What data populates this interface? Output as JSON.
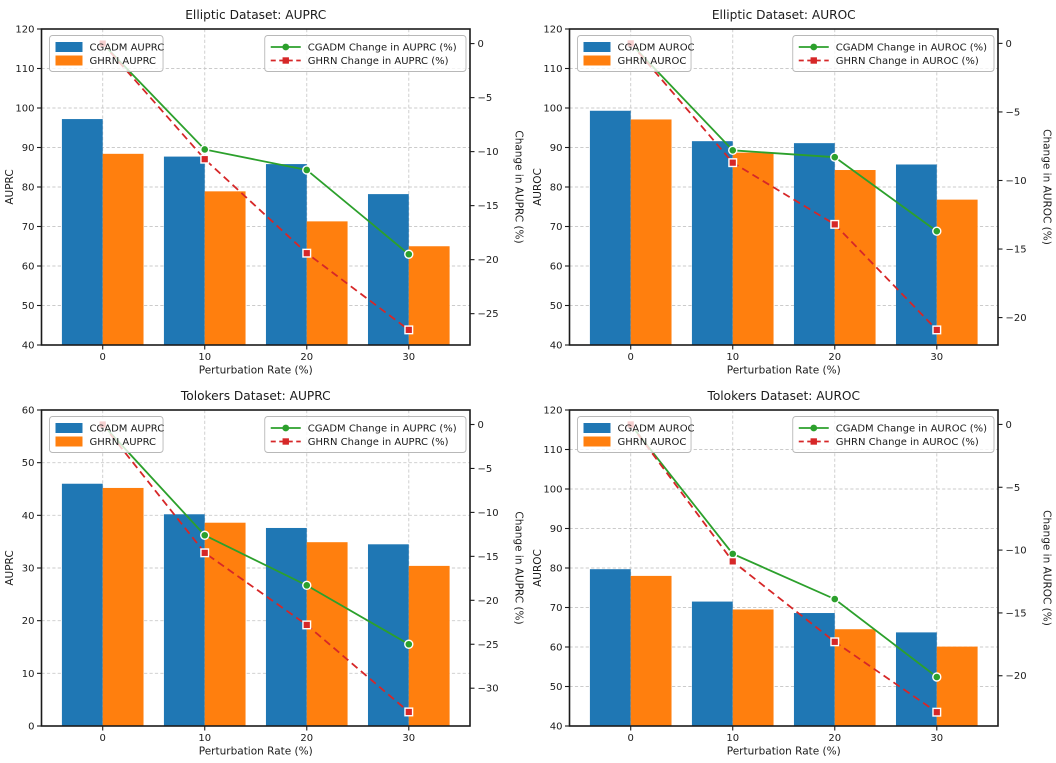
{
  "figure": {
    "background": "#ffffff",
    "description": "2x2 grid of bar+line charts comparing CGADM and GHRN under perturbation"
  },
  "colors": {
    "cgadm_bar": "#1f77b4",
    "ghrn_bar": "#ff7f0e",
    "cgadm_line": "#2ca02c",
    "ghrn_line": "#d62728",
    "grid": "#cbcbcb",
    "spine": "#1b1b1b",
    "legend_border": "#b8b8b8",
    "legend_bg": "#ffffff"
  },
  "chart_data": [
    {
      "id": "elliptic-auprc",
      "type": "bar+line",
      "title": "Elliptic Dataset: AUPRC",
      "xlabel": "Perturbation Rate (%)",
      "ylabel_left": "AUPRC",
      "ylabel_right": "Change in AUPRC (%)",
      "categories": [
        "0",
        "10",
        "20",
        "30"
      ],
      "series_bars": [
        {
          "name": "CGADM AUPRC",
          "color_key": "cgadm_bar",
          "values": [
            97.2,
            87.7,
            85.8,
            78.2
          ]
        },
        {
          "name": "GHRN AUPRC",
          "color_key": "ghrn_bar",
          "values": [
            88.4,
            78.9,
            71.3,
            65.0
          ]
        }
      ],
      "series_lines": [
        {
          "name": "CGADM Change in AUPRC (%)",
          "color_key": "cgadm_line",
          "style": "solid",
          "marker": "circle",
          "values": [
            0,
            -9.8,
            -11.7,
            -19.5
          ]
        },
        {
          "name": "GHRN Change in AUPRC (%)",
          "color_key": "ghrn_line",
          "style": "dashed",
          "marker": "square",
          "values": [
            0,
            -10.7,
            -19.4,
            -26.5
          ]
        }
      ],
      "left_ylim": [
        40,
        120
      ],
      "left_ticks": [
        40,
        50,
        60,
        70,
        80,
        90,
        100,
        110,
        120
      ],
      "right_ylim": [
        -27.9,
        1.35
      ],
      "right_ticks": [
        0,
        -5,
        -10,
        -15,
        -20,
        -25
      ],
      "grid": true,
      "legend_bars_loc": "upper left",
      "legend_lines_loc": "upper right"
    },
    {
      "id": "elliptic-auroc",
      "type": "bar+line",
      "title": "Elliptic Dataset: AUROC",
      "xlabel": "Perturbation Rate (%)",
      "ylabel_left": "AUROC",
      "ylabel_right": "Change in AUROC (%)",
      "categories": [
        "0",
        "10",
        "20",
        "30"
      ],
      "series_bars": [
        {
          "name": "CGADM AUROC",
          "color_key": "cgadm_bar",
          "values": [
            99.3,
            91.6,
            91.1,
            85.7
          ]
        },
        {
          "name": "GHRN AUROC",
          "color_key": "ghrn_bar",
          "values": [
            97.1,
            88.7,
            84.3,
            76.8
          ]
        }
      ],
      "series_lines": [
        {
          "name": "CGADM Change in AUROC (%)",
          "color_key": "cgadm_line",
          "style": "solid",
          "marker": "circle",
          "values": [
            0,
            -7.8,
            -8.3,
            -13.7
          ]
        },
        {
          "name": "GHRN Change in AUROC (%)",
          "color_key": "ghrn_line",
          "style": "dashed",
          "marker": "square",
          "values": [
            0,
            -8.7,
            -13.2,
            -20.9
          ]
        }
      ],
      "left_ylim": [
        40,
        120
      ],
      "left_ticks": [
        40,
        50,
        60,
        70,
        80,
        90,
        100,
        110,
        120
      ],
      "right_ylim": [
        -22.0,
        1.05
      ],
      "right_ticks": [
        0,
        -5,
        -10,
        -15,
        -20
      ],
      "grid": true,
      "legend_bars_loc": "upper left",
      "legend_lines_loc": "upper right"
    },
    {
      "id": "tolokers-auprc",
      "type": "bar+line",
      "title": "Tolokers Dataset: AUPRC",
      "xlabel": "Perturbation Rate (%)",
      "ylabel_left": "AUPRC",
      "ylabel_right": "Change in AUPRC (%)",
      "categories": [
        "0",
        "10",
        "20",
        "30"
      ],
      "series_bars": [
        {
          "name": "CGADM AUPRC",
          "color_key": "cgadm_bar",
          "values": [
            46.0,
            40.2,
            37.6,
            34.5
          ]
        },
        {
          "name": "GHRN AUPRC",
          "color_key": "ghrn_bar",
          "values": [
            45.2,
            38.6,
            34.9,
            30.4
          ]
        }
      ],
      "series_lines": [
        {
          "name": "CGADM Change in AUPRC (%)",
          "color_key": "cgadm_line",
          "style": "solid",
          "marker": "circle",
          "values": [
            0,
            -12.6,
            -18.3,
            -25.0
          ]
        },
        {
          "name": "GHRN Change in AUPRC (%)",
          "color_key": "ghrn_line",
          "style": "dashed",
          "marker": "square",
          "values": [
            0,
            -14.6,
            -22.8,
            -32.7
          ]
        }
      ],
      "left_ylim": [
        0,
        60
      ],
      "left_ticks": [
        0,
        10,
        20,
        30,
        40,
        50,
        60
      ],
      "right_ylim": [
        -34.3,
        1.65
      ],
      "right_ticks": [
        0,
        -5,
        -10,
        -15,
        -20,
        -25,
        -30
      ],
      "grid": true,
      "legend_bars_loc": "upper left",
      "legend_lines_loc": "upper right"
    },
    {
      "id": "tolokers-auroc",
      "type": "bar+line",
      "title": "Tolokers Dataset: AUROC",
      "xlabel": "Perturbation Rate (%)",
      "ylabel_left": "AUROC",
      "ylabel_right": "Change in AUROC (%)",
      "categories": [
        "0",
        "10",
        "20",
        "30"
      ],
      "series_bars": [
        {
          "name": "CGADM AUROC",
          "color_key": "cgadm_bar",
          "values": [
            79.7,
            71.5,
            68.6,
            63.7
          ]
        },
        {
          "name": "GHRN AUROC",
          "color_key": "ghrn_bar",
          "values": [
            78.0,
            69.5,
            64.5,
            60.1
          ]
        }
      ],
      "series_lines": [
        {
          "name": "CGADM Change in AUROC (%)",
          "color_key": "cgadm_line",
          "style": "solid",
          "marker": "circle",
          "values": [
            0,
            -10.3,
            -13.9,
            -20.1
          ]
        },
        {
          "name": "GHRN Change in AUROC (%)",
          "color_key": "ghrn_line",
          "style": "dashed",
          "marker": "square",
          "values": [
            0,
            -10.9,
            -17.3,
            -22.9
          ]
        }
      ],
      "left_ylim": [
        40,
        120
      ],
      "left_ticks": [
        40,
        50,
        60,
        70,
        80,
        90,
        100,
        110,
        120
      ],
      "right_ylim": [
        -24.0,
        1.15
      ],
      "right_ticks": [
        0,
        -5,
        -10,
        -15,
        -20
      ],
      "grid": true,
      "legend_bars_loc": "upper left",
      "legend_lines_loc": "upper right"
    }
  ]
}
